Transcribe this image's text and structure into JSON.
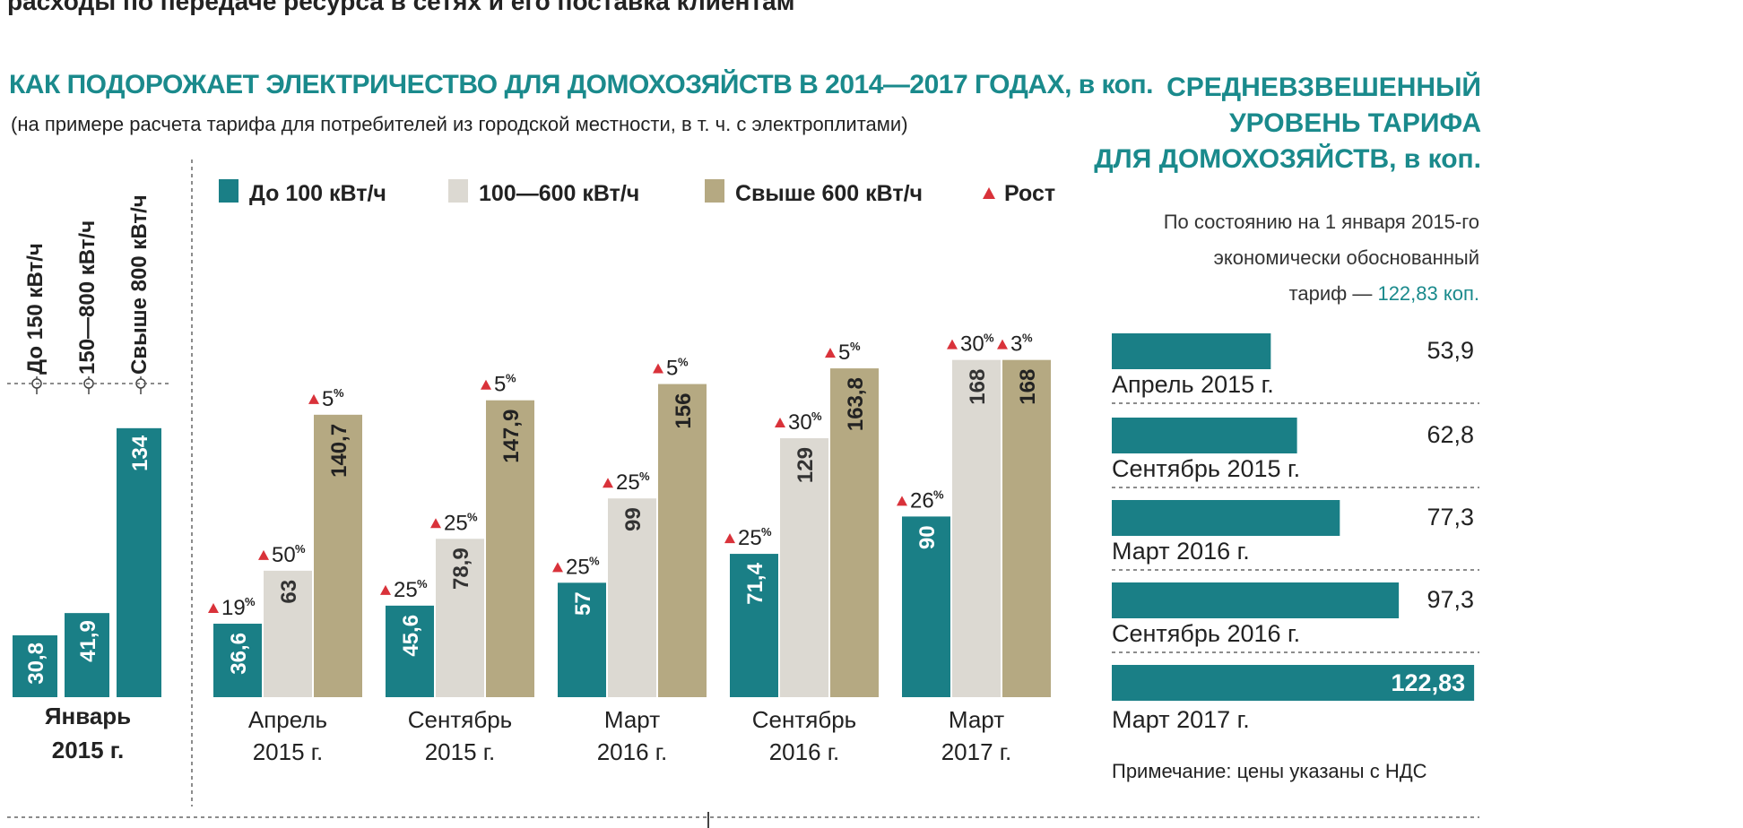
{
  "header": {
    "top_line": "расходы по передаче ресурса в сетях и его поставка клиентам",
    "title": "КАК ПОДОРОЖАЕТ ЭЛЕКТРИЧЕСТВО ДЛЯ ДОМОХОЗЯЙСТВ В 2014—2017 ГОДАХ,",
    "title_unit": "в коп.",
    "subtitle": "(на примере расчета тарифа для потребителей из городской местности, в т. ч. с электроплитами)"
  },
  "side_panel": {
    "title_lines": [
      "СРЕДНЕВЗВЕШЕННЫЙ",
      "УРОВЕНЬ ТАРИФА",
      "ДЛЯ ДОМОХОЗЯЙСТВ, в коп."
    ],
    "note_line1": "По состоянию на 1 января 2015-го",
    "note_line2": "экономически обоснованный",
    "note_line3_prefix": "тариф — ",
    "note_line3_value": "122,83 коп.",
    "footnote": "Примечание: цены указаны с НДС"
  },
  "colors": {
    "teal": "#1a7f86",
    "light": "#dcd9d2",
    "tan": "#b5a982",
    "title_teal": "#1a8a8c",
    "growth_triangle": "#d9323a"
  },
  "chart_data": [
    {
      "type": "bar",
      "title": "Январь 2015 г.",
      "categories": [
        "Январь 2015 г."
      ],
      "series": [
        {
          "name": "До 150 кВт/ч",
          "values": [
            30.8
          ],
          "labels": [
            "30,8"
          ]
        },
        {
          "name": "150—800 кВт/ч",
          "values": [
            41.9
          ],
          "labels": [
            "41,9"
          ]
        },
        {
          "name": "Свыше 800 кВт/ч",
          "values": [
            134
          ],
          "labels": [
            "134"
          ]
        }
      ]
    },
    {
      "type": "bar",
      "title": "КАК ПОДОРОЖАЕТ ЭЛЕКТРИЧЕСТВО ДЛЯ ДОМОХОЗЯЙСТВ В 2014—2017 ГОДАХ, в коп.",
      "categories": [
        "Апрель 2015 г.",
        "Сентябрь 2015 г.",
        "Март 2016 г.",
        "Сентябрь 2016 г.",
        "Март 2017 г."
      ],
      "category_lines": [
        [
          "Апрель",
          "2015 г."
        ],
        [
          "Сентябрь",
          "2015 г."
        ],
        [
          "Март",
          "2016 г."
        ],
        [
          "Сентябрь",
          "2016 г."
        ],
        [
          "Март",
          "2017 г."
        ]
      ],
      "legend": [
        "До 100 кВт/ч",
        "100—600 кВт/ч",
        "Свыше 600 кВт/ч",
        "Рост"
      ],
      "legend_placement": "top",
      "series": [
        {
          "name": "До 100 кВт/ч",
          "values": [
            36.6,
            45.6,
            57,
            71.4,
            90
          ],
          "labels": [
            "36,6",
            "45,6",
            "57",
            "71,4",
            "90"
          ],
          "growth": [
            "19",
            "25",
            "25",
            "25",
            "26"
          ]
        },
        {
          "name": "100—600 кВт/ч",
          "values": [
            63,
            78.9,
            99,
            129,
            168
          ],
          "labels": [
            "63",
            "78,9",
            "99",
            "129",
            "168"
          ],
          "growth": [
            "50",
            "25",
            "25",
            "30",
            "30"
          ]
        },
        {
          "name": "Свыше 600 кВт/ч",
          "values": [
            140.7,
            147.9,
            156,
            163.8,
            168
          ],
          "labels": [
            "140,7",
            "147,9",
            "156",
            "163,8",
            "168"
          ],
          "growth": [
            "5",
            "5",
            "5",
            "5",
            "3"
          ]
        }
      ],
      "growth_unit": "%"
    },
    {
      "type": "bar",
      "orientation": "horizontal",
      "title": "СРЕДНЕВЗВЕШЕННЫЙ УРОВЕНЬ ТАРИФА ДЛЯ ДОМОХОЗЯЙСТВ, в коп.",
      "categories": [
        "Апрель 2015 г.",
        "Сентябрь 2015 г.",
        "Март 2016 г.",
        "Сентябрь 2016 г.",
        "Март 2017 г."
      ],
      "values": [
        53.9,
        62.8,
        77.3,
        97.3,
        122.83
      ],
      "labels": [
        "53,9",
        "62,8",
        "77,3",
        "97,3",
        "122,83"
      ]
    }
  ]
}
